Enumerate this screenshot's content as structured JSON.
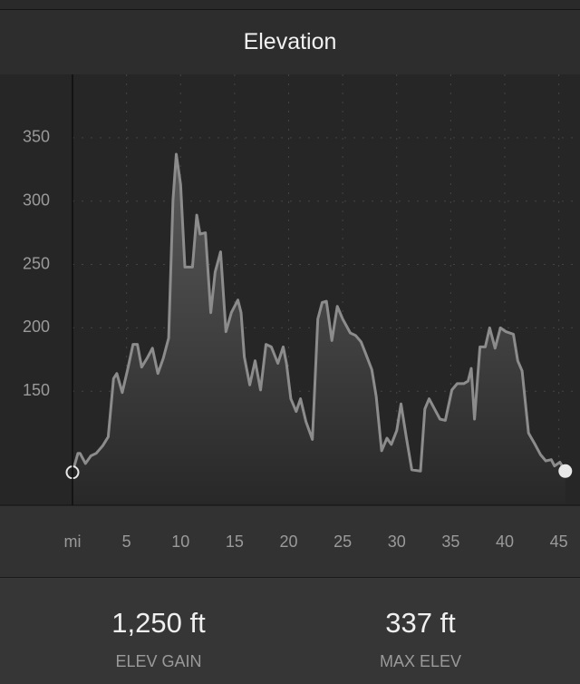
{
  "header": {
    "title": "Elevation"
  },
  "chart_data": {
    "type": "area",
    "x": [
      0,
      0.5,
      0.7,
      1.2,
      1.7,
      2.2,
      2.8,
      3.3,
      3.8,
      4.1,
      4.6,
      5.1,
      5.6,
      6.0,
      6.4,
      6.9,
      7.4,
      7.9,
      8.4,
      8.9,
      9.3,
      9.6,
      10.0,
      10.4,
      11.1,
      11.5,
      11.8,
      12.3,
      12.8,
      13.2,
      13.7,
      14.2,
      14.7,
      15.3,
      15.6,
      15.9,
      16.4,
      16.9,
      17.4,
      17.9,
      18.4,
      19.0,
      19.5,
      19.8,
      20.2,
      20.7,
      21.1,
      21.6,
      22.2,
      22.7,
      23.1,
      23.5,
      24.0,
      24.5,
      25.0,
      25.7,
      26.2,
      26.7,
      27.2,
      27.7,
      28.1,
      28.6,
      29.1,
      29.5,
      30.0,
      30.4,
      30.9,
      31.4,
      32.2,
      32.6,
      33.0,
      33.5,
      34.0,
      34.5,
      35.1,
      35.6,
      36.2,
      36.6,
      36.9,
      37.2,
      37.7,
      38.2,
      38.6,
      39.1,
      39.6,
      40.1,
      40.8,
      41.2,
      41.6,
      42.2,
      42.8,
      43.3,
      43.8,
      44.3,
      44.6,
      45.1,
      45.6
    ],
    "values": [
      86,
      101,
      101,
      93,
      99,
      101,
      107,
      114,
      160,
      164,
      149,
      167,
      187,
      187,
      169,
      176,
      184,
      164,
      176,
      192,
      301,
      337,
      313,
      248,
      248,
      289,
      274,
      275,
      212,
      244,
      260,
      197,
      212,
      222,
      212,
      177,
      155,
      174,
      151,
      187,
      185,
      172,
      185,
      172,
      144,
      134,
      144,
      126,
      112,
      207,
      220,
      221,
      190,
      217,
      207,
      196,
      194,
      189,
      178,
      167,
      146,
      103,
      113,
      108,
      119,
      140,
      113,
      88,
      87,
      136,
      144,
      136,
      128,
      127,
      151,
      156,
      156,
      158,
      168,
      128,
      185,
      185,
      200,
      184,
      200,
      197,
      195,
      174,
      166,
      117,
      108,
      100,
      95,
      96,
      91,
      94,
      87
    ],
    "color": "#8c8c8c",
    "xlim": [
      0,
      47
    ],
    "ylim": [
      60,
      400
    ],
    "xticks": [
      {
        "value": 0,
        "label": "mi"
      },
      5,
      10,
      15,
      20,
      25,
      30,
      35,
      40,
      45
    ],
    "yticks": [
      150,
      200,
      250,
      300,
      350
    ],
    "grid": true
  },
  "stats": [
    {
      "value": "1,250 ft",
      "label": "ELEV GAIN"
    },
    {
      "value": "337 ft",
      "label": "MAX ELEV"
    }
  ]
}
